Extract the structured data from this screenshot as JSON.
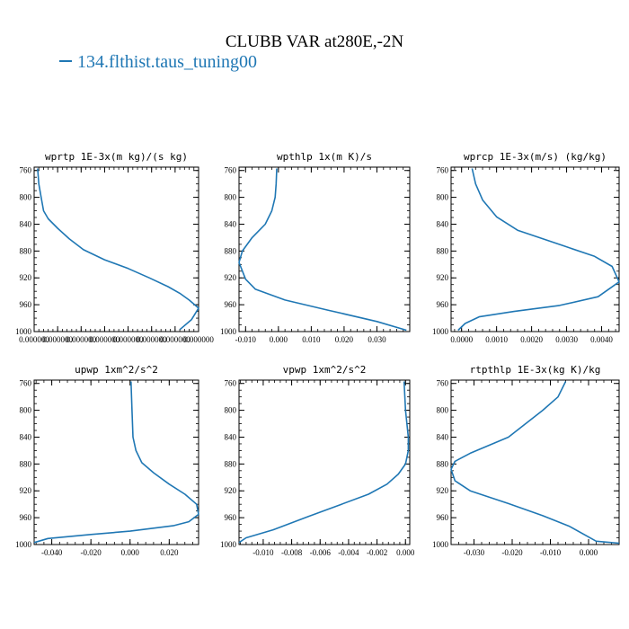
{
  "title": "CLUBB VAR at280E,-2N",
  "legend": {
    "label": "134.flthist.taus_tuning00",
    "color": "#1f77b4"
  },
  "chart_data": [
    {
      "type": "line",
      "title": "wprtp  1E-3x(m kg)/(s kg)",
      "xlim": [
        0.0,
        1.4e-07
      ],
      "xticks": [
        0.0,
        2e-08,
        4e-08,
        6e-08,
        8e-08,
        1e-07,
        1.2e-07,
        1.4e-07
      ],
      "xtick_labels": [
        "0.000000",
        "0.000000",
        "0.000000",
        "0.000000",
        "0.000000",
        "0.000000",
        "0.000000",
        "0.000000"
      ],
      "ylim": [
        1000,
        755
      ],
      "yticks": [
        760,
        800,
        840,
        880,
        920,
        960,
        1000
      ],
      "series": [
        {
          "x": [
            3e-09,
            4e-09,
            6e-09,
            8e-09,
            1.2e-08,
            2e-08,
            3e-08,
            4.2e-08,
            6e-08,
            8e-08,
            9.8e-08,
            1.14e-07,
            1.24e-07,
            1.32e-07,
            1.4e-07,
            1.34e-07,
            1.24e-07
          ],
          "y": [
            757,
            780,
            800,
            820,
            832,
            846,
            862,
            878,
            893,
            906,
            920,
            933,
            943,
            953,
            965,
            982,
            997
          ]
        }
      ]
    },
    {
      "type": "line",
      "title": "wpthlp  1x(m K)/s",
      "xlim": [
        -0.012,
        0.04
      ],
      "xticks": [
        -0.01,
        0.0,
        0.01,
        0.02,
        0.03
      ],
      "xtick_labels": [
        "-0.010",
        "0.000",
        "0.010",
        "0.020",
        "0.030"
      ],
      "ylim": [
        1000,
        755
      ],
      "yticks": [
        760,
        800,
        840,
        880,
        920,
        960,
        1000
      ],
      "series": [
        {
          "x": [
            -0.0005,
            -0.0007,
            -0.001,
            -0.002,
            -0.004,
            -0.008,
            -0.011,
            -0.012,
            -0.01,
            -0.007,
            0.002,
            0.015,
            0.03,
            0.039
          ],
          "y": [
            757,
            780,
            800,
            820,
            840,
            860,
            880,
            897,
            922,
            937,
            953,
            968,
            985,
            998
          ]
        }
      ]
    },
    {
      "type": "line",
      "title": "wprcp  1E-3x(m/s) (kg/kg)",
      "xlim": [
        -0.0003,
        0.0045
      ],
      "xticks": [
        0.0,
        0.001,
        0.002,
        0.003,
        0.004
      ],
      "xtick_labels": [
        "0.0000",
        "0.0010",
        "0.0020",
        "0.0030",
        "0.0040"
      ],
      "ylim": [
        1000,
        755
      ],
      "yticks": [
        760,
        800,
        840,
        880,
        920,
        960,
        1000
      ],
      "series": [
        {
          "x": [
            0.0003,
            0.0004,
            0.0006,
            0.001,
            0.0016,
            0.0029,
            0.0038,
            0.0043,
            0.0045,
            0.0039,
            0.0028,
            0.0015,
            0.0005,
            0.0001,
            -0.0001
          ],
          "y": [
            757,
            780,
            804,
            829,
            849,
            872,
            888,
            903,
            926,
            948,
            961,
            970,
            978,
            988,
            998
          ]
        }
      ]
    },
    {
      "type": "line",
      "title": "upwp  1xm^2/s^2",
      "xlim": [
        -0.049,
        0.035
      ],
      "xticks": [
        -0.04,
        -0.02,
        0.0,
        0.02
      ],
      "xtick_labels": [
        "-0.040",
        "-0.020",
        "0.000",
        "0.020"
      ],
      "ylim": [
        1000,
        755
      ],
      "yticks": [
        760,
        800,
        840,
        880,
        920,
        960,
        1000
      ],
      "series": [
        {
          "x": [
            0.0005,
            0.001,
            0.0015,
            0.003,
            0.006,
            0.012,
            0.02,
            0.028,
            0.034,
            0.035,
            0.03,
            0.022,
            0.0,
            -0.02,
            -0.042,
            -0.049
          ],
          "y": [
            757,
            800,
            840,
            860,
            878,
            893,
            910,
            925,
            940,
            955,
            966,
            972,
            980,
            985,
            991,
            997
          ]
        }
      ]
    },
    {
      "type": "line",
      "title": "vpwp  1xm^2/s^2",
      "xlim": [
        -0.0117,
        0.0003
      ],
      "xticks": [
        -0.01,
        -0.008,
        -0.006,
        -0.004,
        -0.002,
        0.0
      ],
      "xtick_labels": [
        "-0.010",
        "-0.008",
        "-0.006",
        "-0.004",
        "-0.002",
        "0.000"
      ],
      "ylim": [
        1000,
        755
      ],
      "yticks": [
        760,
        800,
        840,
        880,
        920,
        960,
        1000
      ],
      "series": [
        {
          "x": [
            -0.0001,
            0.0,
            0.0002,
            0.0002,
            0.0,
            -0.0005,
            -0.0013,
            -0.0026,
            -0.0045,
            -0.0068,
            -0.0093,
            -0.0112,
            -0.0117
          ],
          "y": [
            757,
            800,
            840,
            860,
            880,
            895,
            910,
            925,
            940,
            958,
            978,
            990,
            997
          ]
        }
      ]
    },
    {
      "type": "line",
      "title": "rtpthlp  1E-3x(kg K)/kg",
      "xlim": [
        -0.036,
        0.008
      ],
      "xticks": [
        -0.03,
        -0.02,
        -0.01,
        0.0
      ],
      "xtick_labels": [
        "-0.030",
        "-0.020",
        "-0.010",
        "0.000"
      ],
      "ylim": [
        1000,
        755
      ],
      "yticks": [
        760,
        800,
        840,
        880,
        920,
        960,
        1000
      ],
      "series": [
        {
          "x": [
            -0.006,
            -0.008,
            -0.012,
            -0.021,
            -0.031,
            -0.035,
            -0.036,
            -0.035,
            -0.031,
            -0.021,
            -0.012,
            -0.005,
            0.002,
            0.008
          ],
          "y": [
            757,
            780,
            800,
            840,
            864,
            876,
            888,
            905,
            920,
            939,
            957,
            973,
            995,
            998
          ]
        }
      ]
    }
  ]
}
